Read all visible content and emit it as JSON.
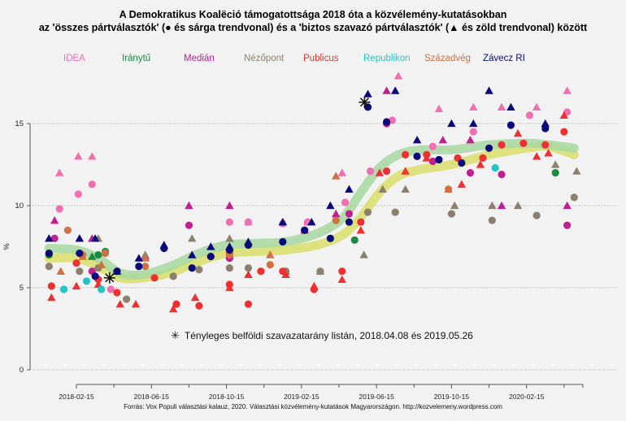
{
  "chart_data": {
    "type": "scatter",
    "title": "A Demokratikus Koalëció támogatottsága 2018 óta a közvélemény-kutatásokban",
    "subtitle": "az 'összes pártválasztók' (● és sárga trendvonal) és a 'biztos szavazó pártválasztók' (▲ és zöld trendvonal) között",
    "xlabel": "",
    "ylabel": "%",
    "ylim": [
      0,
      15
    ],
    "yticks": [
      "0",
      "5",
      "10",
      "15"
    ],
    "yticks_values": [
      0,
      5,
      10,
      15
    ],
    "xticks": [
      "2018-02-15",
      "2018-06-15",
      "2018-10-15",
      "2019-02-15",
      "2019-06-15",
      "2019-10-15",
      "2020-02-15"
    ],
    "x_axis_end": "2020-05-15",
    "grid": true,
    "legend_position": "top",
    "series": [
      {
        "name": "IDEA",
        "color": "#f06fb0",
        "circles": [
          [
            "2018-01-18",
            9.8
          ],
          [
            "2018-02-18",
            10.7
          ],
          [
            "2018-03-10",
            11.3
          ],
          [
            "2018-04-10",
            4.9
          ],
          [
            "2018-10-20",
            9.0
          ],
          [
            "2018-11-20",
            9.0
          ],
          [
            "2019-01-15",
            8.9
          ],
          [
            "2019-02-25",
            9.0
          ],
          [
            "2019-04-25",
            10.2
          ],
          [
            "2019-06-05",
            12.1
          ],
          [
            "2019-07-10",
            15.2
          ],
          [
            "2019-09-15",
            13.6
          ],
          [
            "2019-11-20",
            14.5
          ],
          [
            "2020-02-20",
            15.5
          ],
          [
            "2020-04-20",
            15.7
          ]
        ],
        "triangles": [
          [
            "2018-01-18",
            12.0
          ],
          [
            "2018-02-18",
            13.0
          ],
          [
            "2018-03-10",
            13.0
          ],
          [
            "2018-11-20",
            9.0
          ],
          [
            "2019-01-15",
            9.0
          ],
          [
            "2019-02-25",
            9.0
          ],
          [
            "2019-04-20",
            12.0
          ],
          [
            "2019-07-20",
            17.9
          ],
          [
            "2019-09-25",
            15.9
          ],
          [
            "2019-11-20",
            16.0
          ],
          [
            "2020-01-05",
            16.0
          ],
          [
            "2020-03-01",
            16.0
          ],
          [
            "2020-04-20",
            17.0
          ]
        ]
      },
      {
        "name": "Iránytű",
        "color": "#1a8a3e",
        "circles": [
          [
            "2018-01-01",
            7.0
          ],
          [
            "2018-03-20",
            7.0
          ],
          [
            "2018-04-01",
            7.2
          ],
          [
            "2019-05-10",
            7.9
          ],
          [
            "2020-04-01",
            12.0
          ]
        ],
        "triangles": [
          [
            "2018-02-20",
            8.0
          ],
          [
            "2018-03-10",
            6.9
          ]
        ]
      },
      {
        "name": "Medián",
        "color": "#c0208f",
        "circles": [
          [
            "2018-01-10",
            8.0
          ],
          [
            "2018-03-10",
            6.0
          ],
          [
            "2018-08-15",
            8.8
          ],
          [
            "2018-10-20",
            6.8
          ],
          [
            "2019-02-20",
            8.5
          ],
          [
            "2019-05-01",
            9.5
          ],
          [
            "2019-07-01",
            15.0
          ],
          [
            "2019-09-15",
            12.7
          ],
          [
            "2019-11-15",
            12.0
          ],
          [
            "2020-01-05",
            11.9
          ],
          [
            "2020-04-20",
            8.8
          ]
        ],
        "triangles": [
          [
            "2018-01-10",
            9.1
          ],
          [
            "2018-03-10",
            8.0
          ],
          [
            "2018-06-05",
            6.9
          ],
          [
            "2018-08-15",
            10.0
          ],
          [
            "2018-10-20",
            10.0
          ],
          [
            "2019-02-20",
            8.5
          ],
          [
            "2019-04-10",
            9.5
          ],
          [
            "2019-07-01",
            17.0
          ],
          [
            "2019-10-01",
            14.0
          ],
          [
            "2019-11-15",
            14.0
          ],
          [
            "2020-01-05",
            10.0
          ],
          [
            "2020-04-20",
            10.0
          ]
        ]
      },
      {
        "name": "Nézőpont",
        "color": "#8c806c",
        "circles": [
          [
            "2018-01-01",
            6.3
          ],
          [
            "2018-02-20",
            6.0
          ],
          [
            "2018-03-20",
            6.2
          ],
          [
            "2018-05-05",
            4.3
          ],
          [
            "2018-07-20",
            5.7
          ],
          [
            "2018-09-01",
            6.1
          ],
          [
            "2018-10-20",
            6.2
          ],
          [
            "2018-11-20",
            6.2
          ],
          [
            "2019-01-20",
            6.0
          ],
          [
            "2019-03-15",
            6.0
          ],
          [
            "2019-06-01",
            9.6
          ],
          [
            "2019-07-15",
            9.6
          ],
          [
            "2019-10-15",
            9.5
          ],
          [
            "2019-12-20",
            9.1
          ],
          [
            "2020-03-01",
            9.4
          ],
          [
            "2020-05-01",
            10.5
          ]
        ],
        "triangles": [
          [
            "2018-01-01",
            8.0
          ],
          [
            "2018-02-20",
            8.0
          ],
          [
            "2018-03-20",
            8.0
          ],
          [
            "2018-04-20",
            6.0
          ],
          [
            "2018-06-05",
            7.0
          ],
          [
            "2018-08-20",
            8.0
          ],
          [
            "2018-10-20",
            8.0
          ],
          [
            "2019-01-20",
            6.0
          ],
          [
            "2019-03-15",
            6.0
          ],
          [
            "2019-05-25",
            7.0
          ],
          [
            "2019-06-25",
            11.0
          ],
          [
            "2019-08-01",
            11.0
          ],
          [
            "2019-10-20",
            10.0
          ],
          [
            "2019-12-20",
            10.0
          ],
          [
            "2020-02-01",
            10.0
          ],
          [
            "2020-04-01",
            12.5
          ],
          [
            "2020-05-05",
            12.1
          ]
        ]
      },
      {
        "name": "Publicus",
        "color": "#ee3030",
        "circles": [
          [
            "2018-01-05",
            5.1
          ],
          [
            "2018-02-15",
            6.5
          ],
          [
            "2018-03-20",
            5.5
          ],
          [
            "2018-04-20",
            4.7
          ],
          [
            "2018-06-20",
            5.6
          ],
          [
            "2018-07-25",
            4.0
          ],
          [
            "2018-09-01",
            3.9
          ],
          [
            "2018-10-20",
            5.2
          ],
          [
            "2018-11-20",
            4.0
          ],
          [
            "2018-12-10",
            6.0
          ],
          [
            "2019-01-15",
            6.0
          ],
          [
            "2019-03-05",
            4.9
          ],
          [
            "2019-04-20",
            6.0
          ],
          [
            "2019-05-20",
            9.0
          ],
          [
            "2019-07-01",
            12.1
          ],
          [
            "2019-08-01",
            13.1
          ],
          [
            "2019-09-05",
            13.1
          ],
          [
            "2019-10-25",
            12.9
          ],
          [
            "2019-12-05",
            12.9
          ],
          [
            "2020-01-05",
            13.7
          ],
          [
            "2020-02-10",
            13.8
          ],
          [
            "2020-03-15",
            13.7
          ],
          [
            "2020-04-15",
            14.5
          ]
        ],
        "triangles": [
          [
            "2018-01-05",
            4.4
          ],
          [
            "2018-02-15",
            5.1
          ],
          [
            "2018-03-20",
            5.2
          ],
          [
            "2018-04-25",
            4.0
          ],
          [
            "2018-05-20",
            4.0
          ],
          [
            "2018-07-20",
            3.7
          ],
          [
            "2018-08-25",
            4.4
          ],
          [
            "2018-10-20",
            5.0
          ],
          [
            "2018-11-20",
            5.8
          ],
          [
            "2019-01-20",
            5.8
          ],
          [
            "2019-03-05",
            5.1
          ],
          [
            "2019-04-20",
            5.5
          ],
          [
            "2019-05-20",
            8.5
          ],
          [
            "2019-06-20",
            12.0
          ],
          [
            "2019-08-01",
            12.1
          ],
          [
            "2019-09-05",
            12.9
          ],
          [
            "2019-11-01",
            11.3
          ],
          [
            "2019-12-01",
            12.5
          ],
          [
            "2020-02-01",
            14.4
          ],
          [
            "2020-03-01",
            13.0
          ],
          [
            "2020-03-20",
            13.2
          ],
          [
            "2020-04-15",
            15.5
          ]
        ]
      },
      {
        "name": "Republikon",
        "color": "#22c4c4",
        "circles": [
          [
            "2018-01-25",
            4.9
          ],
          [
            "2018-03-01",
            5.4
          ],
          [
            "2018-03-25",
            4.9
          ],
          [
            "2019-12-25",
            12.3
          ]
        ],
        "triangles": []
      },
      {
        "name": "Századvég",
        "color": "#d17040",
        "circles": [
          [
            "2018-02-01",
            8.5
          ],
          [
            "2018-02-25",
            7.0
          ],
          [
            "2018-04-01",
            7.1
          ],
          [
            "2018-06-05",
            6.3
          ],
          [
            "2018-10-20",
            7.0
          ],
          [
            "2018-12-25",
            6.4
          ],
          [
            "2019-04-10",
            9.1
          ],
          [
            "2019-10-10",
            11.0
          ]
        ],
        "triangles": [
          [
            "2018-01-20",
            6.0
          ],
          [
            "2018-02-25",
            6.9
          ],
          [
            "2018-03-25",
            6.4
          ],
          [
            "2018-06-05",
            6.8
          ],
          [
            "2018-10-20",
            7.3
          ],
          [
            "2018-12-25",
            7.0
          ],
          [
            "2019-04-10",
            11.8
          ],
          [
            "2019-10-10",
            11.0
          ]
        ]
      },
      {
        "name": "Závecz RI",
        "color": "#0a0a7a",
        "circles": [
          [
            "2018-01-01",
            7.1
          ],
          [
            "2018-02-20",
            7.1
          ],
          [
            "2018-03-15",
            5.7
          ],
          [
            "2018-04-20",
            6.0
          ],
          [
            "2018-05-25",
            6.3
          ],
          [
            "2018-07-05",
            7.4
          ],
          [
            "2018-08-20",
            6.2
          ],
          [
            "2018-09-20",
            6.9
          ],
          [
            "2018-10-20",
            7.3
          ],
          [
            "2018-11-20",
            7.6
          ],
          [
            "2019-01-15",
            7.8
          ],
          [
            "2019-02-20",
            8.5
          ],
          [
            "2019-04-01",
            8.0
          ],
          [
            "2019-05-01",
            9.0
          ],
          [
            "2019-06-01",
            16.0
          ],
          [
            "2019-07-01",
            15.1
          ],
          [
            "2019-08-20",
            13.0
          ],
          [
            "2019-09-25",
            12.8
          ],
          [
            "2019-11-01",
            12.6
          ],
          [
            "2019-12-15",
            13.5
          ],
          [
            "2020-01-20",
            14.9
          ],
          [
            "2020-03-15",
            14.7
          ]
        ],
        "triangles": [
          [
            "2018-01-01",
            8.0
          ],
          [
            "2018-02-20",
            8.0
          ],
          [
            "2018-03-15",
            8.0
          ],
          [
            "2018-04-20",
            6.0
          ],
          [
            "2018-05-25",
            6.8
          ],
          [
            "2018-07-05",
            7.6
          ],
          [
            "2018-08-20",
            7.0
          ],
          [
            "2018-09-20",
            7.5
          ],
          [
            "2018-10-20",
            7.5
          ],
          [
            "2018-11-20",
            7.8
          ],
          [
            "2019-01-15",
            9.0
          ],
          [
            "2019-03-01",
            9.0
          ],
          [
            "2019-04-01",
            10.0
          ],
          [
            "2019-05-01",
            11.0
          ],
          [
            "2019-06-01",
            16.8
          ],
          [
            "2019-07-15",
            17.0
          ],
          [
            "2019-08-20",
            14.0
          ],
          [
            "2019-10-15",
            15.0
          ],
          [
            "2019-11-20",
            15.0
          ],
          [
            "2019-12-15",
            17.0
          ],
          [
            "2020-01-20",
            16.0
          ],
          [
            "2020-03-15",
            15.0
          ]
        ]
      }
    ],
    "trend_lines": [
      {
        "name": "összes pártválasztók trend",
        "color": "#d9de6a",
        "points": [
          [
            "2018-01-01",
            6.8
          ],
          [
            "2018-02-15",
            6.8
          ],
          [
            "2018-03-20",
            6.3
          ],
          [
            "2018-04-25",
            5.6
          ],
          [
            "2018-06-01",
            5.6
          ],
          [
            "2018-07-15",
            5.9
          ],
          [
            "2018-09-01",
            6.6
          ],
          [
            "2018-10-15",
            7.1
          ],
          [
            "2018-12-01",
            7.2
          ],
          [
            "2019-01-20",
            7.3
          ],
          [
            "2019-03-10",
            7.6
          ],
          [
            "2019-04-20",
            8.2
          ],
          [
            "2019-05-20",
            9.3
          ],
          [
            "2019-06-20",
            10.8
          ],
          [
            "2019-07-20",
            11.8
          ],
          [
            "2019-08-25",
            12.2
          ],
          [
            "2019-10-15",
            12.5
          ],
          [
            "2019-12-15",
            13.1
          ],
          [
            "2020-02-15",
            13.5
          ],
          [
            "2020-03-20",
            13.6
          ],
          [
            "2020-05-01",
            13.1
          ]
        ]
      },
      {
        "name": "biztos szavazók trend",
        "color": "#a8d8a0",
        "points": [
          [
            "2018-01-01",
            7.4
          ],
          [
            "2018-02-15",
            7.3
          ],
          [
            "2018-03-20",
            6.8
          ],
          [
            "2018-04-25",
            5.9
          ],
          [
            "2018-06-01",
            5.8
          ],
          [
            "2018-07-15",
            6.3
          ],
          [
            "2018-09-01",
            7.1
          ],
          [
            "2018-10-15",
            7.6
          ],
          [
            "2018-12-01",
            7.7
          ],
          [
            "2019-01-20",
            7.8
          ],
          [
            "2019-03-10",
            8.3
          ],
          [
            "2019-04-20",
            9.2
          ],
          [
            "2019-05-20",
            10.8
          ],
          [
            "2019-06-20",
            12.3
          ],
          [
            "2019-07-20",
            13.1
          ],
          [
            "2019-08-25",
            13.4
          ],
          [
            "2019-10-15",
            13.4
          ],
          [
            "2019-12-15",
            13.7
          ],
          [
            "2020-02-15",
            13.8
          ],
          [
            "2020-03-20",
            13.7
          ],
          [
            "2020-05-01",
            13.5
          ]
        ]
      }
    ],
    "actual_results": {
      "label": "Tényleges belföldi szavazatarány listán, 2018.04.08 és 2019.05.26",
      "points": [
        [
          "2018-04-08",
          5.6
        ],
        [
          "2019-05-26",
          16.3
        ]
      ]
    },
    "source": "Forrás: Vox Populi választási kalauz, 2020. Választási közvélemény-kutatások Magyarországon. http://kozvelemeny.wordpress.com"
  }
}
